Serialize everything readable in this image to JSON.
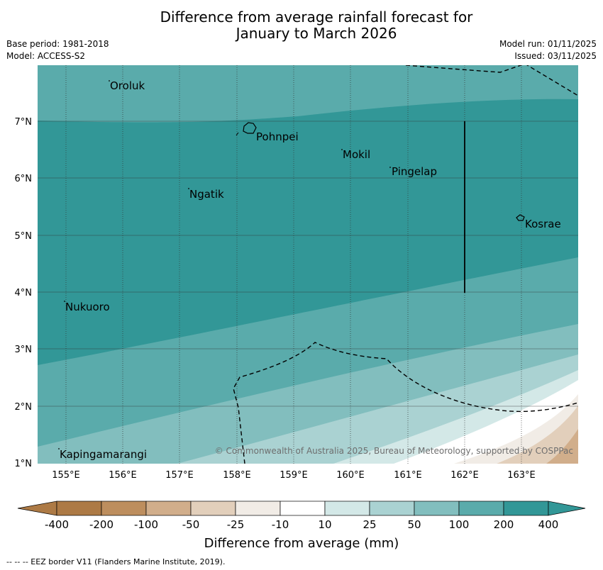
{
  "title_line1": "Difference from average rainfall forecast for",
  "title_line2": "January to March 2026",
  "meta_left": [
    "Base period: 1981-2018",
    "Model: ACCESS-S2"
  ],
  "meta_right": [
    "Model run: 01/11/2025",
    "Issued: 03/11/2025"
  ],
  "map": {
    "lat_ticks": [
      "7°N",
      "6°N",
      "5°N",
      "4°N",
      "3°N",
      "2°N",
      "1°N"
    ],
    "lon_ticks": [
      "155°E",
      "156°E",
      "157°E",
      "158°E",
      "159°E",
      "160°E",
      "161°E",
      "162°E",
      "163°E"
    ],
    "places": [
      "Oroluk",
      "Pohnpei",
      "Mokil",
      "Pingelap",
      "Ngatik",
      "Kosrae",
      "Nukuoro",
      "Kapingamarangi"
    ],
    "copyright": "© Commonwealth of Australia 2025, Bureau of Meteorology, supported by COSPPac"
  },
  "colorbar": {
    "labels": [
      "-400",
      "-200",
      "-100",
      "-50",
      "-25",
      "-10",
      "10",
      "25",
      "50",
      "100",
      "200",
      "400"
    ],
    "colors": [
      "#ad7a45",
      "#bd8e5e",
      "#d1ae8b",
      "#e2cfbb",
      "#f1ece6",
      "#ffffff",
      "#d3e8e7",
      "#aad2d2",
      "#82bebe",
      "#5aabab",
      "#329797"
    ],
    "title": "Difference from average (mm)"
  },
  "footnote": "--  --  -- EEZ border V11 (Flanders Marine Institute, 2019)."
}
